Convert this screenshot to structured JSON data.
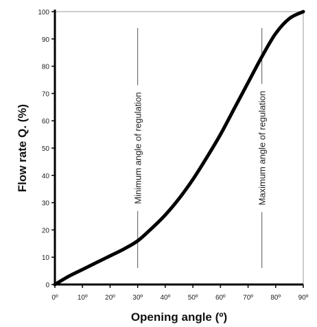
{
  "chart_data": {
    "type": "line",
    "title": "",
    "xlabel": "Opening angle (º)",
    "ylabel": "Flow rate Q. (%)",
    "xlim": [
      0,
      90
    ],
    "ylim": [
      0,
      100
    ],
    "x_ticks": [
      0,
      10,
      20,
      30,
      40,
      50,
      60,
      70,
      80,
      90
    ],
    "x_tick_labels": [
      "0º",
      "10º",
      "20º",
      "30º",
      "40º",
      "50º",
      "60º",
      "70º",
      "80º",
      "90º"
    ],
    "y_ticks": [
      0,
      10,
      20,
      30,
      40,
      50,
      60,
      70,
      80,
      90,
      100
    ],
    "y_tick_labels": [
      "0",
      "10",
      "20",
      "30",
      "40",
      "50",
      "60",
      "70",
      "80",
      "90",
      "100"
    ],
    "grid": false,
    "series": [
      {
        "x": [
          0,
          5,
          10,
          15,
          20,
          25,
          30,
          35,
          40,
          45,
          50,
          55,
          60,
          65,
          70,
          75,
          80,
          85,
          90
        ],
        "y": [
          0,
          3,
          5.5,
          8,
          10.5,
          13,
          16,
          20.5,
          25.5,
          31.5,
          38.5,
          46.5,
          55,
          64.5,
          74,
          83.5,
          92,
          97.5,
          100
        ]
      }
    ],
    "annotations": [
      {
        "text": "Minimum angle of regulation",
        "x": 30,
        "y_range": [
          6,
          94
        ]
      },
      {
        "text": "Maximum angle of regulation",
        "x": 75,
        "y_range": [
          6,
          94
        ]
      }
    ],
    "colors": {
      "line": "#000000",
      "axis": "#000000",
      "frame": "#999999"
    }
  }
}
